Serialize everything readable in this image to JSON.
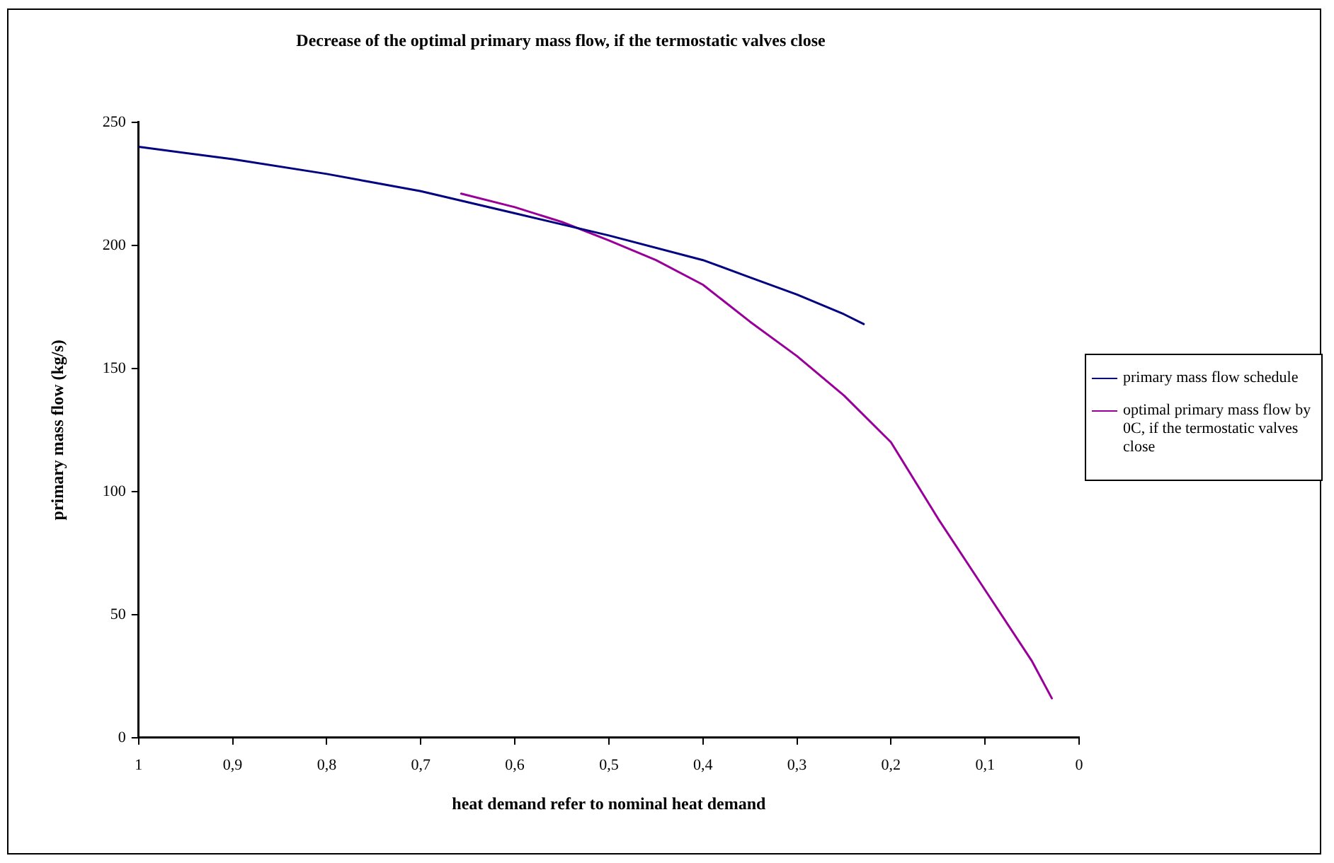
{
  "chart_data": {
    "type": "line",
    "title": "Decrease of the optimal primary mass flow, if the termostatic valves close",
    "xlabel": "heat demand refer to nominal heat demand",
    "ylabel": "primary mass flow (kg/s)",
    "xlim": [
      1,
      0
    ],
    "xticks": [
      1,
      {
        "value": 0.9,
        "label": "0,9"
      },
      {
        "value": 0.8,
        "label": "0,8"
      },
      {
        "value": 0.7,
        "label": "0,7"
      },
      {
        "value": 0.6,
        "label": "0,6"
      },
      {
        "value": 0.5,
        "label": "0,5"
      },
      {
        "value": 0.4,
        "label": "0,4"
      },
      {
        "value": 0.3,
        "label": "0,3"
      },
      {
        "value": 0.2,
        "label": "0,2"
      },
      {
        "value": 0.1,
        "label": "0,1"
      },
      0
    ],
    "ylim": [
      0,
      250
    ],
    "yticks": [
      0,
      50,
      100,
      150,
      200,
      250
    ],
    "grid": false,
    "legend": "right",
    "marker": "none",
    "line_style": "solid",
    "series": [
      {
        "name": "primary mass flow schedule",
        "color": "#000080",
        "x": [
          1,
          0.9,
          0.8,
          0.7,
          0.6,
          0.5,
          0.4,
          0.35,
          0.3,
          0.25,
          0.229
        ],
        "values": [
          240,
          235,
          229,
          222,
          213,
          204,
          194,
          187,
          180,
          172,
          168
        ]
      },
      {
        "name": "optimal primary mass flow by 0C, if the termostatic valves close",
        "color": "#990099",
        "x": [
          0.657,
          0.6,
          0.55,
          0.5,
          0.45,
          0.4,
          0.35,
          0.3,
          0.25,
          0.2,
          0.15,
          0.1,
          0.05,
          0.029
        ],
        "values": [
          221,
          215.5,
          209.5,
          202,
          194,
          184,
          169,
          155,
          139,
          120,
          89,
          60,
          31,
          16
        ]
      }
    ]
  }
}
